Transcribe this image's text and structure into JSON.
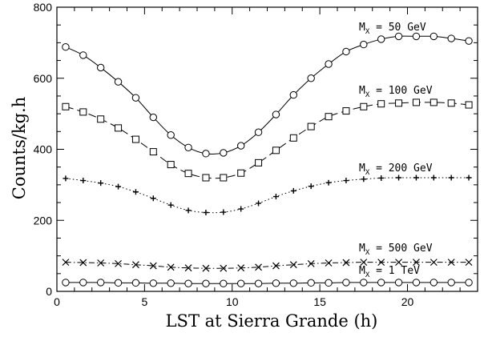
{
  "chart_data": {
    "type": "line",
    "title": "",
    "xlabel": "LST at Sierra Grande (h)",
    "ylabel": "Counts/kg.h",
    "xlim": [
      0,
      24
    ],
    "ylim": [
      0,
      800
    ],
    "x_ticks": [
      0,
      5,
      10,
      15,
      20
    ],
    "y_ticks": [
      0,
      200,
      400,
      600,
      800
    ],
    "grid": false,
    "legend": "none",
    "x": [
      0.5,
      1.5,
      2.5,
      3.5,
      4.5,
      5.5,
      6.5,
      7.5,
      8.5,
      9.5,
      10.5,
      11.5,
      12.5,
      13.5,
      14.5,
      15.5,
      16.5,
      17.5,
      18.5,
      19.5,
      20.5,
      21.5,
      22.5,
      23.5
    ],
    "series": [
      {
        "label_main": "M",
        "label_sub": "X",
        "label_rest": " = 50 GeV",
        "marker": "circle",
        "line_style": "solid",
        "values": [
          688,
          665,
          630,
          590,
          545,
          490,
          440,
          405,
          388,
          390,
          410,
          448,
          498,
          553,
          600,
          640,
          675,
          695,
          710,
          718,
          718,
          718,
          712,
          705
        ]
      },
      {
        "label_main": "M",
        "label_sub": "X",
        "label_rest": " = 100 GeV",
        "marker": "square",
        "line_style": "dashed",
        "values": [
          520,
          505,
          485,
          460,
          428,
          393,
          357,
          332,
          320,
          320,
          333,
          362,
          397,
          432,
          464,
          492,
          508,
          520,
          528,
          530,
          532,
          532,
          530,
          525
        ]
      },
      {
        "label_main": "M",
        "label_sub": "X",
        "label_rest": " = 200 GeV",
        "marker": "plus",
        "line_style": "dotted",
        "values": [
          318,
          312,
          305,
          295,
          280,
          262,
          243,
          228,
          222,
          223,
          232,
          248,
          267,
          283,
          296,
          306,
          312,
          316,
          319,
          320,
          320,
          320,
          320,
          320
        ]
      },
      {
        "label_main": "M",
        "label_sub": "X",
        "label_rest": " = 500 GeV",
        "marker": "cross",
        "line_style": "dashdot",
        "values": [
          82,
          81,
          80,
          78,
          75,
          72,
          68,
          66,
          65,
          65,
          66,
          68,
          72,
          75,
          78,
          80,
          81,
          82,
          82,
          82,
          82,
          82,
          82,
          82
        ]
      },
      {
        "label_main": "M",
        "label_sub": "X",
        "label_rest": " = 1 TeV",
        "marker": "circle",
        "line_style": "solid",
        "values": [
          25,
          25,
          25,
          24,
          24,
          23,
          23,
          22,
          22,
          22,
          22,
          22,
          23,
          23,
          24,
          24,
          25,
          25,
          25,
          25,
          25,
          25,
          25,
          25
        ]
      }
    ]
  }
}
